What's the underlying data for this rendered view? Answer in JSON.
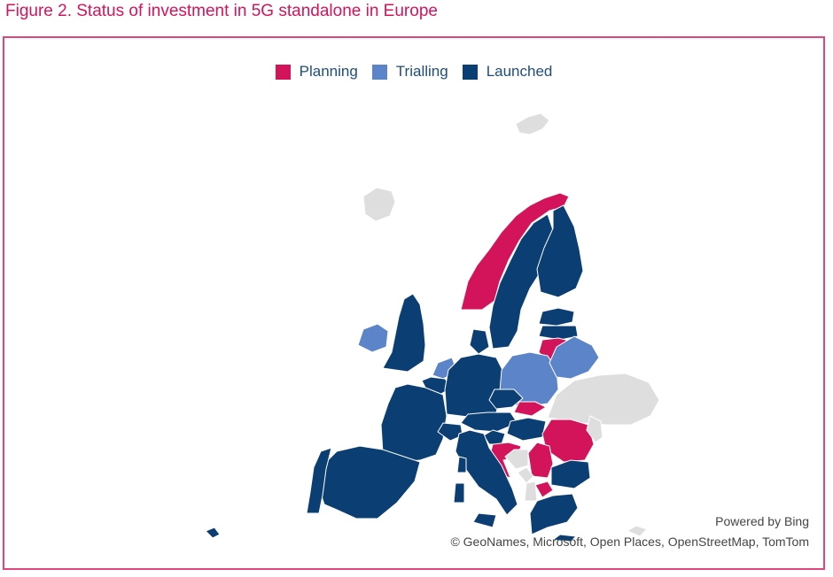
{
  "figure": {
    "title": "Figure 2. Status of investment in 5G standalone in Europe"
  },
  "legend": [
    {
      "label": "Planning",
      "color": "#d4145a"
    },
    {
      "label": "Trialling",
      "color": "#5b84c9"
    },
    {
      "label": "Launched",
      "color": "#0b3f73"
    }
  ],
  "colors": {
    "no_data": "#dedede",
    "border": "#ffffff",
    "frame": "#e0457b",
    "title": "#d4145a"
  },
  "map": {
    "regions": [
      {
        "name": "Iceland",
        "status": "no_data"
      },
      {
        "name": "Svalbard",
        "status": "no_data"
      },
      {
        "name": "Norway",
        "status": "planning"
      },
      {
        "name": "Sweden",
        "status": "launched"
      },
      {
        "name": "Finland",
        "status": "launched"
      },
      {
        "name": "Estonia",
        "status": "launched"
      },
      {
        "name": "Latvia",
        "status": "launched"
      },
      {
        "name": "Lithuania",
        "status": "planning"
      },
      {
        "name": "Ireland",
        "status": "trialling"
      },
      {
        "name": "United Kingdom",
        "status": "launched"
      },
      {
        "name": "Denmark",
        "status": "launched"
      },
      {
        "name": "Netherlands",
        "status": "trialling"
      },
      {
        "name": "Belgium",
        "status": "launched"
      },
      {
        "name": "Germany",
        "status": "launched"
      },
      {
        "name": "Poland",
        "status": "trialling"
      },
      {
        "name": "Belarus",
        "status": "trialling"
      },
      {
        "name": "Ukraine",
        "status": "no_data"
      },
      {
        "name": "France",
        "status": "launched"
      },
      {
        "name": "Switzerland",
        "status": "launched"
      },
      {
        "name": "Austria",
        "status": "launched"
      },
      {
        "name": "Czechia",
        "status": "launched"
      },
      {
        "name": "Slovakia",
        "status": "planning"
      },
      {
        "name": "Hungary",
        "status": "launched"
      },
      {
        "name": "Romania",
        "status": "planning"
      },
      {
        "name": "Moldova",
        "status": "no_data"
      },
      {
        "name": "Slovenia",
        "status": "launched"
      },
      {
        "name": "Croatia",
        "status": "planning"
      },
      {
        "name": "Bosnia and Herzegovina",
        "status": "no_data"
      },
      {
        "name": "Serbia",
        "status": "planning"
      },
      {
        "name": "Montenegro",
        "status": "no_data"
      },
      {
        "name": "Albania",
        "status": "no_data"
      },
      {
        "name": "North Macedonia",
        "status": "planning"
      },
      {
        "name": "Bulgaria",
        "status": "launched"
      },
      {
        "name": "Greece",
        "status": "launched"
      },
      {
        "name": "Spain",
        "status": "launched"
      },
      {
        "name": "Portugal",
        "status": "launched"
      },
      {
        "name": "Italy",
        "status": "launched"
      },
      {
        "name": "Sardinia",
        "status": "launched"
      },
      {
        "name": "Corsica",
        "status": "launched"
      },
      {
        "name": "Sicily",
        "status": "launched"
      },
      {
        "name": "Crete",
        "status": "launched"
      },
      {
        "name": "Cyprus",
        "status": "no_data"
      },
      {
        "name": "Canary Islands",
        "status": "launched"
      }
    ]
  },
  "attribution": {
    "powered_by": "Powered by Bing",
    "credits": "© GeoNames, Microsoft, Open Places, OpenStreetMap, TomTom"
  }
}
